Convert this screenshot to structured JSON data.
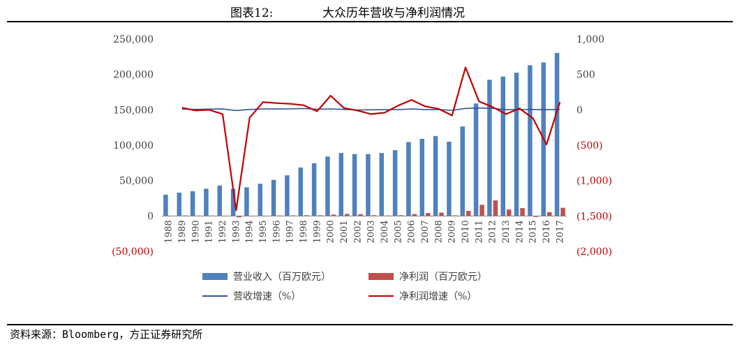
{
  "figure": {
    "number_label": "图表12:",
    "title": "大众历年营收与净利润情况",
    "source": "资料来源：Bloomberg，方正证券研究所"
  },
  "chart_data": {
    "type": "bar+line",
    "title": "大众历年营收与净利润情况",
    "categories": [
      "1988",
      "1989",
      "1990",
      "1991",
      "1992",
      "1993",
      "1994",
      "1995",
      "1996",
      "1997",
      "1998",
      "1999",
      "2000",
      "2001",
      "2002",
      "2003",
      "2004",
      "2005",
      "2006",
      "2007",
      "2008",
      "2009",
      "2010",
      "2011",
      "2012",
      "2013",
      "2014",
      "2015",
      "2016",
      "2017"
    ],
    "left_axis": {
      "ylim": [
        -50000,
        250000
      ],
      "ticks": [
        250000,
        200000,
        150000,
        100000,
        50000,
        0,
        -50000
      ],
      "tick_labels": [
        "250,000",
        "200,000",
        "150,000",
        "100,000",
        "50,000",
        "0",
        "(50,000)"
      ]
    },
    "right_axis": {
      "ylim": [
        -2000,
        1000
      ],
      "ticks": [
        1000,
        500,
        0,
        -500,
        -1000,
        -1500,
        -2000
      ],
      "tick_labels": [
        "1,000",
        "500",
        "0",
        "(500)",
        "(1,000)",
        "(1,500)",
        "(2,000)"
      ]
    },
    "series": [
      {
        "name": "营业收入（百万欧元）",
        "kind": "bar",
        "axis": "left",
        "color": "#4F81BD",
        "values": [
          30000,
          33000,
          35000,
          38500,
          43000,
          38500,
          40500,
          45500,
          51000,
          57500,
          68500,
          74500,
          84000,
          89000,
          87500,
          87500,
          89000,
          93000,
          104500,
          109000,
          113000,
          105000,
          126500,
          159000,
          192500,
          197000,
          202500,
          213000,
          217000,
          230500
        ]
      },
      {
        "name": "净利润（百万欧元）",
        "kind": "bar",
        "axis": "left",
        "color": "#C0504D",
        "values": [
          400,
          700,
          600,
          600,
          300,
          -1900,
          100,
          300,
          600,
          800,
          1100,
          1000,
          2000,
          2900,
          2600,
          1100,
          700,
          1100,
          2700,
          4100,
          4700,
          900,
          7200,
          15800,
          22000,
          9100,
          11100,
          -1400,
          5400,
          11600
        ]
      },
      {
        "name": "营收增速（%）",
        "kind": "line",
        "axis": "right",
        "color": "#2F5597",
        "values": [
          null,
          10,
          6,
          10,
          12,
          -10,
          5,
          12,
          12,
          13,
          19,
          9,
          13,
          6,
          -2,
          0,
          2,
          4,
          12,
          4,
          4,
          -7,
          20,
          26,
          21,
          2,
          3,
          5,
          2,
          6
        ]
      },
      {
        "name": "净利润增速（%）",
        "kind": "line",
        "axis": "right",
        "color": "#C00000",
        "values": [
          null,
          30,
          -10,
          0,
          -60,
          -1420,
          -110,
          110,
          95,
          85,
          65,
          -20,
          200,
          25,
          -10,
          -60,
          -40,
          60,
          140,
          50,
          15,
          -80,
          600,
          120,
          40,
          -60,
          20,
          -120,
          -490,
          110
        ]
      }
    ],
    "legend": {
      "position": "bottom",
      "items": [
        "营业收入（百万欧元）",
        "净利润（百万欧元）",
        "营收增速（%）",
        "净利润增速（%）"
      ]
    },
    "grid": false
  }
}
